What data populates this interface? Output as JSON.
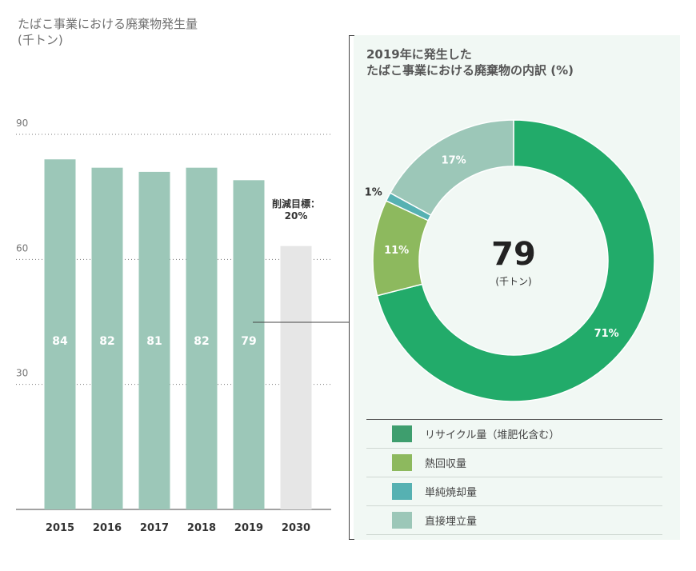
{
  "left_chart": {
    "title_line1": "たばこ事業における廃棄物発生量",
    "title_line2": "(千トン)"
  },
  "right_chart": {
    "title_line1": "2019年に発生した",
    "title_line2": "たばこ事業における廃棄物の内訳 (%)",
    "center_value": "79",
    "center_unit": "(千トン)"
  },
  "colors": {
    "bar": "#9cc7b8",
    "bar_target": "#e6e6e6",
    "recycle": "#22ab6a",
    "thermal": "#8db95e",
    "incineration": "#56b1b2",
    "landfill": "#9cc7b8"
  },
  "chart_data": [
    {
      "type": "bar",
      "categories": [
        "2015",
        "2016",
        "2017",
        "2018",
        "2019",
        "2030"
      ],
      "values": [
        84,
        82,
        81,
        82,
        79,
        63.2
      ],
      "data_labels": [
        "84",
        "82",
        "81",
        "82",
        "79",
        ""
      ],
      "yticks": [
        30,
        60,
        90
      ],
      "ylim": [
        0,
        90
      ],
      "grid": "dotted",
      "target_annotation": "削減目標：\n20%"
    },
    {
      "type": "pie",
      "labels": [
        "リサイクル量（堆肥化含む）",
        "熱回収量",
        "単純焼却量",
        "直接埋立量"
      ],
      "values": [
        71,
        11,
        1,
        17
      ],
      "data_labels": [
        "71%",
        "11%",
        "1%",
        "17%"
      ],
      "colors": [
        "#22ab6a",
        "#8db95e",
        "#56b1b2",
        "#9cc7b8"
      ],
      "legend_position": "bottom"
    }
  ]
}
